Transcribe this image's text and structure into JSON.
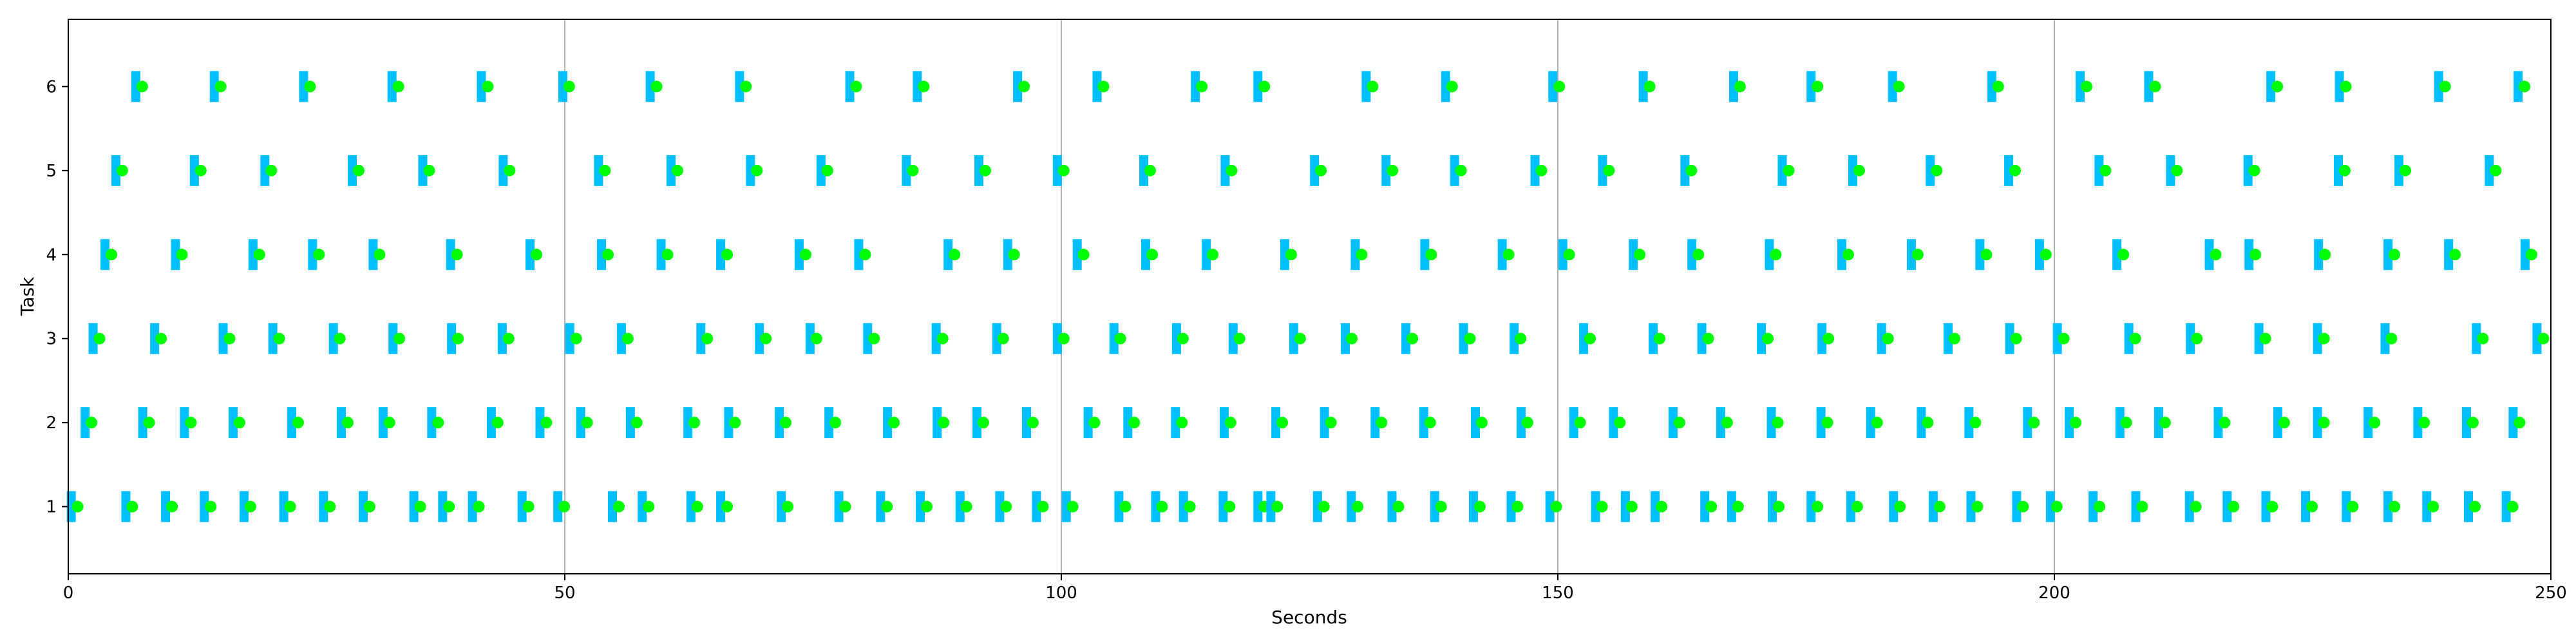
{
  "chart_data": {
    "type": "scatter",
    "xlabel": "Seconds",
    "ylabel": "Task",
    "xlim": [
      0,
      250
    ],
    "ylim": [
      0.2,
      6.8
    ],
    "x_ticks": [
      0,
      50,
      100,
      150,
      200,
      250
    ],
    "y_ticks": [
      1,
      2,
      3,
      4,
      5,
      6
    ],
    "grid": "x-only",
    "colors": {
      "marker": "#00bfff",
      "point": "#00ff00"
    },
    "tasks": [
      {
        "task": 1,
        "events": [
          0.3,
          5.8,
          9.8,
          13.7,
          17.7,
          21.7,
          25.7,
          29.7,
          34.8,
          37.7,
          40.7,
          45.7,
          49.3,
          54.8,
          57.8,
          62.7,
          65.7,
          71.8,
          77.6,
          81.8,
          85.8,
          89.8,
          93.8,
          97.5,
          100.5,
          105.8,
          109.5,
          112.3,
          116.3,
          119.8,
          121.1,
          125.8,
          129.2,
          133.3,
          137.6,
          141.5,
          145.3,
          149.2,
          153.8,
          156.8,
          159.8,
          164.8,
          167.5,
          171.6,
          175.5,
          179.5,
          183.8,
          187.8,
          191.6,
          196.2,
          199.6,
          203.9,
          208.2,
          213.6,
          217.4,
          221.3,
          225.3,
          229.4,
          233.6,
          237.5,
          241.7,
          245.5
        ]
      },
      {
        "task": 2,
        "events": [
          1.7,
          7.5,
          11.7,
          16.6,
          22.5,
          27.5,
          31.7,
          36.6,
          42.6,
          47.5,
          51.6,
          56.6,
          62.4,
          66.5,
          71.6,
          76.6,
          82.5,
          87.5,
          91.5,
          96.5,
          102.7,
          106.7,
          111.5,
          116.4,
          121.6,
          126.5,
          131.6,
          136.5,
          141.7,
          146.3,
          151.6,
          155.6,
          161.6,
          166.4,
          171.5,
          176.5,
          181.5,
          186.6,
          191.4,
          197.3,
          201.5,
          206.6,
          210.5,
          216.5,
          222.5,
          226.5,
          231.6,
          236.6,
          241.5,
          246.2
        ]
      },
      {
        "task": 3,
        "events": [
          2.5,
          8.7,
          15.6,
          20.6,
          26.7,
          32.7,
          38.6,
          43.7,
          50.5,
          55.7,
          63.7,
          69.6,
          74.7,
          80.5,
          87.4,
          93.5,
          99.6,
          105.3,
          111.6,
          117.3,
          123.4,
          128.6,
          134.7,
          140.5,
          145.6,
          152.6,
          159.6,
          164.5,
          170.5,
          176.6,
          182.6,
          189.3,
          195.5,
          200.3,
          207.5,
          213.7,
          220.6,
          226.5,
          233.3,
          242.5,
          248.6
        ]
      },
      {
        "task": 4,
        "events": [
          3.7,
          10.8,
          18.6,
          24.6,
          30.7,
          38.5,
          46.5,
          53.7,
          59.7,
          65.7,
          73.6,
          79.6,
          88.6,
          94.6,
          101.6,
          108.5,
          114.6,
          122.5,
          129.6,
          136.6,
          144.4,
          150.5,
          157.6,
          163.5,
          171.3,
          178.6,
          185.6,
          192.5,
          198.5,
          206.3,
          215.6,
          219.6,
          226.6,
          233.6,
          239.7,
          247.4
        ]
      },
      {
        "task": 5,
        "events": [
          4.8,
          12.7,
          19.8,
          28.6,
          35.7,
          43.8,
          53.4,
          60.7,
          68.7,
          75.8,
          84.4,
          91.7,
          99.6,
          108.3,
          116.5,
          125.5,
          132.7,
          139.6,
          147.7,
          154.5,
          162.8,
          172.6,
          179.7,
          187.5,
          195.4,
          204.5,
          211.7,
          219.5,
          228.6,
          234.7,
          243.8
        ]
      },
      {
        "task": 6,
        "events": [
          6.8,
          14.7,
          23.7,
          32.6,
          41.6,
          49.8,
          58.6,
          67.6,
          78.7,
          85.5,
          95.6,
          103.6,
          113.5,
          119.8,
          130.7,
          138.7,
          149.5,
          158.6,
          167.7,
          175.5,
          183.7,
          193.7,
          202.6,
          209.5,
          221.8,
          228.7,
          238.7,
          246.7
        ]
      }
    ]
  }
}
